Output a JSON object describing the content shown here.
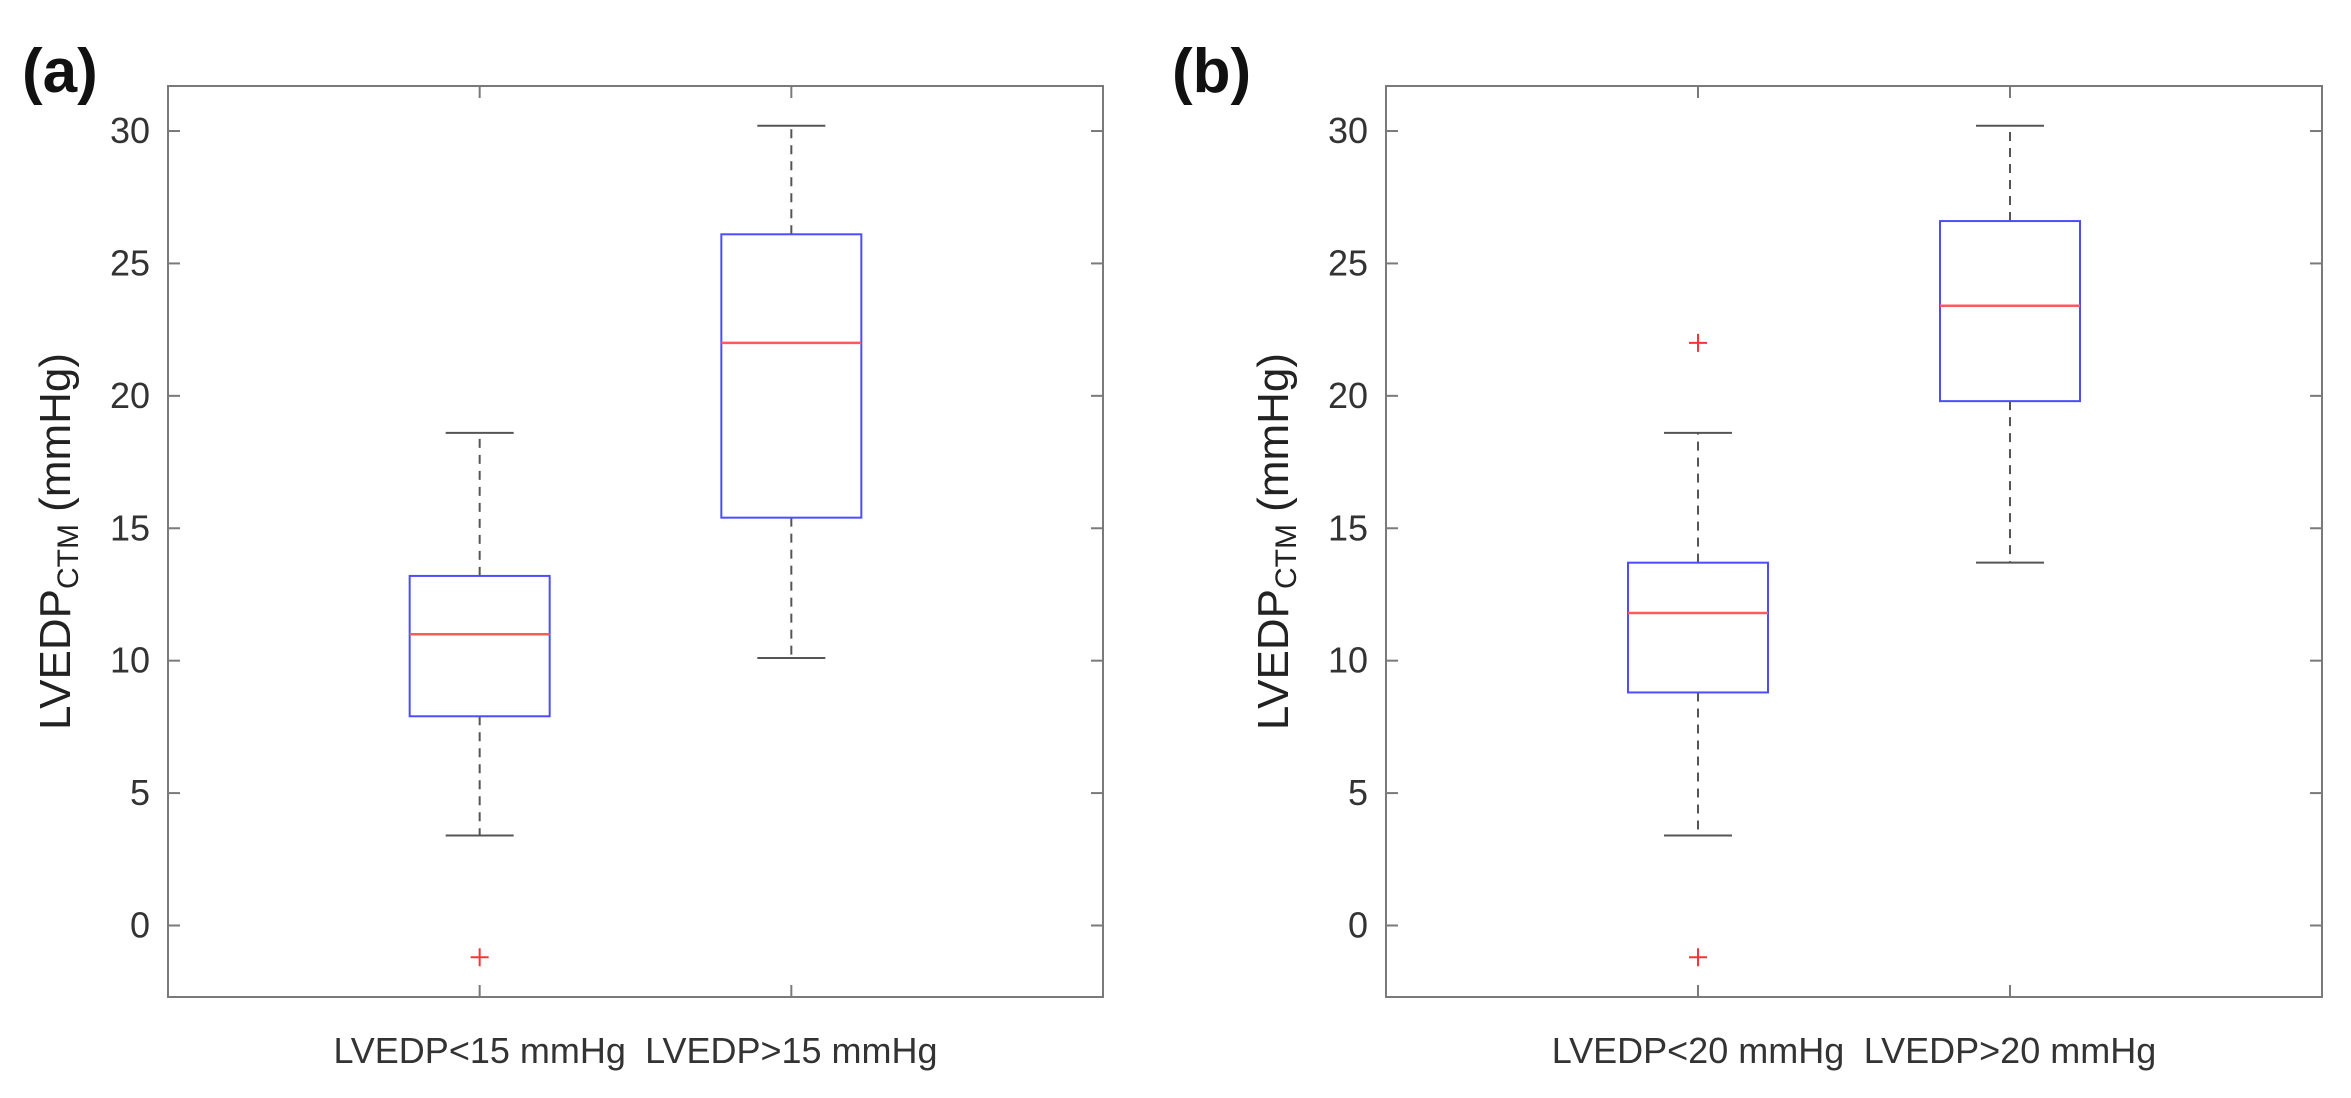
{
  "figure": {
    "colors": {
      "box": "#4d4dff",
      "median": "#ff5a5a",
      "whisker": "#555555",
      "outlier": "#ff3333",
      "axis": "#7a7a7a",
      "text": "#333333"
    }
  },
  "chart_data": [
    {
      "panel_label": "(a)",
      "type": "box",
      "ylabel": {
        "main": "LVEDP",
        "sub": "CTM",
        "unit": "(mmHg)"
      },
      "ylim": [
        -2.7,
        31.7
      ],
      "yticks": [
        0,
        5,
        10,
        15,
        20,
        25,
        30
      ],
      "categories": [
        "LVEDP<15 mmHg",
        "LVEDP>15 mmHg"
      ],
      "boxes": [
        {
          "q1": 7.9,
          "median": 11.0,
          "q3": 13.2,
          "whisker_low": 3.4,
          "whisker_high": 18.6,
          "outliers": [
            -1.2
          ]
        },
        {
          "q1": 15.4,
          "median": 22.0,
          "q3": 26.1,
          "whisker_low": 10.1,
          "whisker_high": 30.2,
          "outliers": []
        }
      ]
    },
    {
      "panel_label": "(b)",
      "type": "box",
      "ylabel": {
        "main": "LVEDP",
        "sub": "CTM",
        "unit": "(mmHg)"
      },
      "ylim": [
        -2.7,
        31.7
      ],
      "yticks": [
        0,
        5,
        10,
        15,
        20,
        25,
        30
      ],
      "categories": [
        "LVEDP<20 mmHg",
        "LVEDP>20 mmHg"
      ],
      "boxes": [
        {
          "q1": 8.8,
          "median": 11.8,
          "q3": 13.7,
          "whisker_low": 3.4,
          "whisker_high": 18.6,
          "outliers": [
            22.0,
            -1.2
          ]
        },
        {
          "q1": 19.8,
          "median": 23.4,
          "q3": 26.6,
          "whisker_low": 13.7,
          "whisker_high": 30.2,
          "outliers": []
        }
      ]
    }
  ]
}
